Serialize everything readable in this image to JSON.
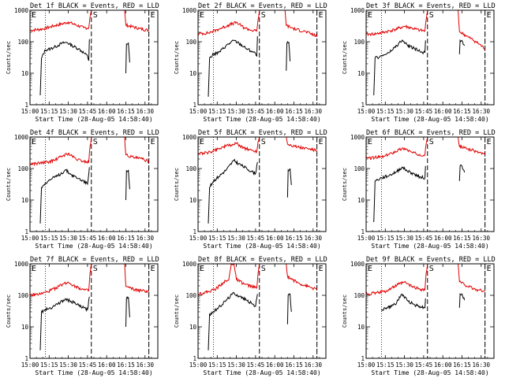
{
  "figure": {
    "panel_titles": [
      "Det 1f BLACK = Events, RED = LLD",
      "Det 2f BLACK = Events, RED = LLD",
      "Det 3f BLACK = Events, RED = LLD",
      "Det 4f BLACK = Events, RED = LLD",
      "Det 5f BLACK = Events, RED = LLD",
      "Det 6f BLACK = Events, RED = LLD",
      "Det 7f BLACK = Events, RED = LLD",
      "Det 8f BLACK = Events, RED = LLD",
      "Det 9f BLACK = Events, RED = LLD"
    ],
    "ylabel": "Counts/sec",
    "xlabel": "Start Time (28-Aug-05 14:58:40)",
    "x_tick_labels": [
      "15:00",
      "15:15",
      "15:30",
      "15:45",
      "16:00",
      "16:15",
      "16:30"
    ],
    "y_tick_labels": [
      "1",
      "10",
      "100",
      "1000"
    ],
    "event_markers": [
      "E",
      "S",
      "E"
    ]
  },
  "colors": {
    "events": "#000000",
    "lld": "#e00000"
  },
  "chart_data": {
    "type": "line",
    "layout": "3x3 grid",
    "y_scale": "log",
    "ylim": [
      1,
      1000
    ],
    "x_units": "minutes after 15:00 (28-Aug-05)",
    "xlim": [
      0,
      100
    ],
    "reference_lines": {
      "dotted": [
        12,
        93
      ],
      "dashed": [
        48,
        93
      ]
    },
    "series_meaning": {
      "black": "Events",
      "red": "LLD"
    },
    "panels": [
      {
        "red": [
          [
            0,
            230
          ],
          [
            10,
            255
          ],
          [
            20,
            330
          ],
          [
            25,
            370
          ],
          [
            30,
            420
          ],
          [
            36,
            340
          ],
          [
            42,
            280
          ],
          [
            46,
            275
          ],
          [
            47,
            600
          ],
          [
            48,
            1000
          ],
          [
            null,
            null
          ],
          [
            74,
            1000
          ],
          [
            75,
            340
          ],
          [
            80,
            300
          ],
          [
            86,
            260
          ],
          [
            93,
            230
          ]
        ],
        "black": [
          [
            8,
            2
          ],
          [
            9,
            30
          ],
          [
            12,
            55
          ],
          [
            16,
            60
          ],
          [
            20,
            70
          ],
          [
            25,
            90
          ],
          [
            29,
            95
          ],
          [
            33,
            75
          ],
          [
            38,
            60
          ],
          [
            42,
            45
          ],
          [
            45,
            35
          ],
          [
            46,
            25
          ],
          [
            46.5,
            120
          ],
          [
            null,
            null
          ],
          [
            75,
            10
          ],
          [
            75.5,
            85
          ],
          [
            77,
            90
          ],
          [
            78,
            22
          ]
        ]
      },
      {
        "red": [
          [
            0,
            180
          ],
          [
            8,
            190
          ],
          [
            16,
            250
          ],
          [
            24,
            340
          ],
          [
            30,
            410
          ],
          [
            36,
            280
          ],
          [
            42,
            230
          ],
          [
            46,
            220
          ],
          [
            47,
            500
          ],
          [
            48,
            1000
          ],
          [
            null,
            null
          ],
          [
            68,
            1000
          ],
          [
            69,
            330
          ],
          [
            76,
            250
          ],
          [
            84,
            210
          ],
          [
            93,
            150
          ]
        ],
        "black": [
          [
            8,
            1.8
          ],
          [
            9,
            30
          ],
          [
            12,
            40
          ],
          [
            16,
            45
          ],
          [
            22,
            75
          ],
          [
            28,
            110
          ],
          [
            32,
            90
          ],
          [
            38,
            60
          ],
          [
            42,
            50
          ],
          [
            45,
            42
          ],
          [
            46,
            35
          ],
          [
            46.5,
            150
          ],
          [
            null,
            null
          ],
          [
            69,
            12
          ],
          [
            69.5,
            90
          ],
          [
            71,
            95
          ],
          [
            72,
            24
          ]
        ]
      },
      {
        "red": [
          [
            0,
            170
          ],
          [
            8,
            180
          ],
          [
            16,
            210
          ],
          [
            22,
            240
          ],
          [
            30,
            310
          ],
          [
            36,
            270
          ],
          [
            42,
            230
          ],
          [
            46,
            220
          ],
          [
            47,
            500
          ],
          [
            48,
            1000
          ],
          [
            null,
            null
          ],
          [
            72,
            1000
          ],
          [
            73,
            210
          ],
          [
            80,
            140
          ],
          [
            86,
            100
          ],
          [
            93,
            60
          ]
        ],
        "black": [
          [
            6,
            2
          ],
          [
            7,
            30
          ],
          [
            12,
            35
          ],
          [
            18,
            45
          ],
          [
            24,
            75
          ],
          [
            28,
            110
          ],
          [
            32,
            80
          ],
          [
            38,
            60
          ],
          [
            42,
            50
          ],
          [
            46,
            45
          ],
          [
            46.5,
            110
          ],
          [
            null,
            null
          ],
          [
            73,
            40
          ],
          [
            73.5,
            110
          ],
          [
            75,
            110
          ],
          [
            77,
            75
          ]
        ]
      },
      {
        "red": [
          [
            0,
            140
          ],
          [
            8,
            150
          ],
          [
            14,
            160
          ],
          [
            20,
            190
          ],
          [
            26,
            260
          ],
          [
            30,
            300
          ],
          [
            36,
            200
          ],
          [
            42,
            170
          ],
          [
            46,
            160
          ],
          [
            47,
            500
          ],
          [
            48,
            1000
          ],
          [
            null,
            null
          ],
          [
            74,
            1000
          ],
          [
            75,
            270
          ],
          [
            82,
            220
          ],
          [
            88,
            200
          ],
          [
            93,
            170
          ]
        ],
        "black": [
          [
            8,
            1.8
          ],
          [
            9,
            25
          ],
          [
            12,
            35
          ],
          [
            16,
            45
          ],
          [
            22,
            60
          ],
          [
            28,
            90
          ],
          [
            32,
            65
          ],
          [
            38,
            48
          ],
          [
            42,
            40
          ],
          [
            45,
            32
          ],
          [
            46.5,
            110
          ],
          [
            null,
            null
          ],
          [
            75,
            10
          ],
          [
            75.5,
            85
          ],
          [
            77,
            90
          ],
          [
            78,
            22
          ]
        ]
      },
      {
        "red": [
          [
            0,
            300
          ],
          [
            8,
            320
          ],
          [
            16,
            430
          ],
          [
            22,
            520
          ],
          [
            26,
            560
          ],
          [
            30,
            620
          ],
          [
            36,
            450
          ],
          [
            42,
            380
          ],
          [
            46,
            350
          ],
          [
            47,
            700
          ],
          [
            48,
            1000
          ],
          [
            null,
            null
          ],
          [
            69,
            1000
          ],
          [
            70,
            600
          ],
          [
            78,
            480
          ],
          [
            86,
            420
          ],
          [
            93,
            380
          ]
        ],
        "black": [
          [
            8,
            1.8
          ],
          [
            9,
            25
          ],
          [
            12,
            40
          ],
          [
            16,
            55
          ],
          [
            22,
            90
          ],
          [
            28,
            180
          ],
          [
            32,
            140
          ],
          [
            38,
            100
          ],
          [
            42,
            80
          ],
          [
            45,
            70
          ],
          [
            46.5,
            160
          ],
          [
            null,
            null
          ],
          [
            70,
            12
          ],
          [
            70.5,
            90
          ],
          [
            72,
            100
          ],
          [
            73,
            30
          ]
        ]
      },
      {
        "red": [
          [
            0,
            210
          ],
          [
            8,
            225
          ],
          [
            14,
            240
          ],
          [
            20,
            310
          ],
          [
            26,
            400
          ],
          [
            30,
            440
          ],
          [
            36,
            320
          ],
          [
            42,
            280
          ],
          [
            46,
            270
          ],
          [
            47,
            600
          ],
          [
            48,
            1000
          ],
          [
            null,
            null
          ],
          [
            72,
            1000
          ],
          [
            73,
            500
          ],
          [
            80,
            420
          ],
          [
            86,
            350
          ],
          [
            93,
            280
          ]
        ],
        "black": [
          [
            6,
            2
          ],
          [
            7,
            40
          ],
          [
            12,
            50
          ],
          [
            18,
            60
          ],
          [
            24,
            80
          ],
          [
            28,
            110
          ],
          [
            32,
            85
          ],
          [
            38,
            65
          ],
          [
            42,
            55
          ],
          [
            46,
            50
          ],
          [
            46.5,
            120
          ],
          [
            null,
            null
          ],
          [
            73,
            40
          ],
          [
            73.5,
            120
          ],
          [
            75,
            120
          ],
          [
            77,
            75
          ]
        ]
      },
      {
        "red": [
          [
            0,
            100
          ],
          [
            8,
            110
          ],
          [
            14,
            130
          ],
          [
            20,
            170
          ],
          [
            26,
            230
          ],
          [
            30,
            260
          ],
          [
            36,
            190
          ],
          [
            42,
            150
          ],
          [
            46,
            140
          ],
          [
            47,
            500
          ],
          [
            48,
            1000
          ],
          [
            null,
            null
          ],
          [
            74,
            1000
          ],
          [
            75,
            190
          ],
          [
            82,
            150
          ],
          [
            88,
            140
          ],
          [
            93,
            130
          ]
        ],
        "black": [
          [
            8,
            1.8
          ],
          [
            9,
            30
          ],
          [
            12,
            35
          ],
          [
            16,
            40
          ],
          [
            22,
            55
          ],
          [
            28,
            75
          ],
          [
            32,
            65
          ],
          [
            38,
            48
          ],
          [
            42,
            40
          ],
          [
            45,
            35
          ],
          [
            46.5,
            90
          ],
          [
            null,
            null
          ],
          [
            75,
            10
          ],
          [
            75.5,
            80
          ],
          [
            77,
            85
          ],
          [
            78,
            20
          ]
        ]
      },
      {
        "red": [
          [
            0,
            110
          ],
          [
            8,
            130
          ],
          [
            14,
            160
          ],
          [
            20,
            260
          ],
          [
            24,
            300
          ],
          [
            26,
            1000
          ],
          [
            28,
            1000
          ],
          [
            30,
            320
          ],
          [
            36,
            230
          ],
          [
            42,
            190
          ],
          [
            46,
            170
          ],
          [
            47,
            500
          ],
          [
            48,
            1000
          ],
          [
            null,
            null
          ],
          [
            69,
            1000
          ],
          [
            70,
            400
          ],
          [
            78,
            250
          ],
          [
            86,
            190
          ],
          [
            93,
            150
          ]
        ],
        "black": [
          [
            8,
            1.8
          ],
          [
            9,
            25
          ],
          [
            12,
            30
          ],
          [
            16,
            40
          ],
          [
            22,
            70
          ],
          [
            28,
            120
          ],
          [
            32,
            95
          ],
          [
            38,
            70
          ],
          [
            42,
            55
          ],
          [
            45,
            45
          ],
          [
            46.5,
            110
          ],
          [
            null,
            null
          ],
          [
            70,
            12
          ],
          [
            70.5,
            100
          ],
          [
            72,
            110
          ],
          [
            73,
            30
          ]
        ]
      },
      {
        "red": [
          [
            0,
            110
          ],
          [
            8,
            120
          ],
          [
            14,
            130
          ],
          [
            20,
            170
          ],
          [
            26,
            230
          ],
          [
            30,
            260
          ],
          [
            36,
            190
          ],
          [
            42,
            160
          ],
          [
            46,
            150
          ],
          [
            47,
            500
          ],
          [
            48,
            1000
          ],
          [
            null,
            null
          ],
          [
            72,
            1000
          ],
          [
            73,
            270
          ],
          [
            80,
            190
          ],
          [
            86,
            150
          ],
          [
            93,
            140
          ]
        ],
        "black": [
          [
            12,
            35
          ],
          [
            16,
            40
          ],
          [
            20,
            45
          ],
          [
            24,
            60
          ],
          [
            28,
            110
          ],
          [
            32,
            70
          ],
          [
            38,
            50
          ],
          [
            42,
            45
          ],
          [
            46,
            40
          ],
          [
            46.5,
            80
          ],
          [
            null,
            null
          ],
          [
            73,
            40
          ],
          [
            73.5,
            110
          ],
          [
            75,
            110
          ],
          [
            77,
            70
          ]
        ]
      }
    ]
  }
}
